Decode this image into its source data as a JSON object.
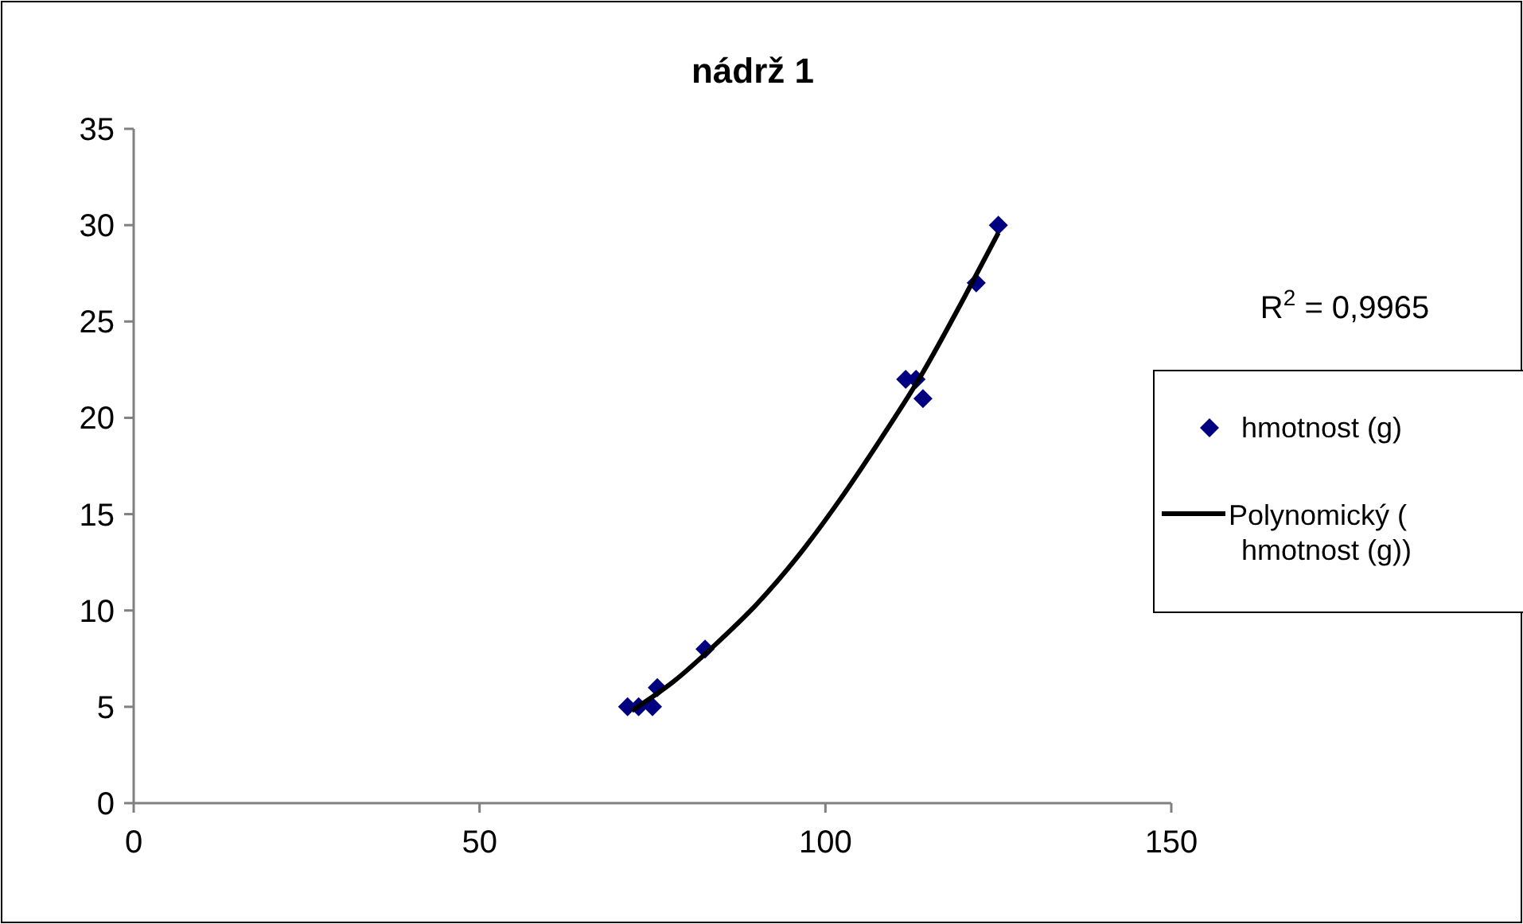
{
  "chart_data": {
    "type": "scatter",
    "title": "nádrž 1",
    "xlim": [
      0,
      150
    ],
    "xticks": [
      0,
      50,
      100,
      150
    ],
    "ylim": [
      0,
      35
    ],
    "yticks": [
      0,
      5,
      10,
      15,
      20,
      25,
      30,
      35
    ],
    "grid": false,
    "legend": "right",
    "annotations": [
      "R$^{2}$ = 0,9965"
    ],
    "series": [
      {
        "name": "hmotnost (g)",
        "color": "#000080",
        "marker": "diamond",
        "x": [
          71.4,
          73.0,
          75.0,
          75.7,
          82.6,
          111.6,
          113.1,
          114.1,
          121.8,
          125.0
        ],
        "values": [
          5,
          5,
          5,
          6,
          8,
          22,
          22,
          21,
          27,
          30
        ]
      },
      {
        "name": "Polynomický ( hmotnost (g))",
        "type": "line",
        "color": "#000000",
        "marker": "none",
        "line_style": "solid",
        "x": [
          72,
          78,
          84,
          90,
          96,
          102,
          108,
          114,
          120,
          125
        ],
        "values": [
          4.8,
          6.3,
          8.2,
          10.3,
          12.8,
          15.7,
          18.9,
          22.3,
          26.2,
          29.6
        ]
      }
    ]
  }
}
